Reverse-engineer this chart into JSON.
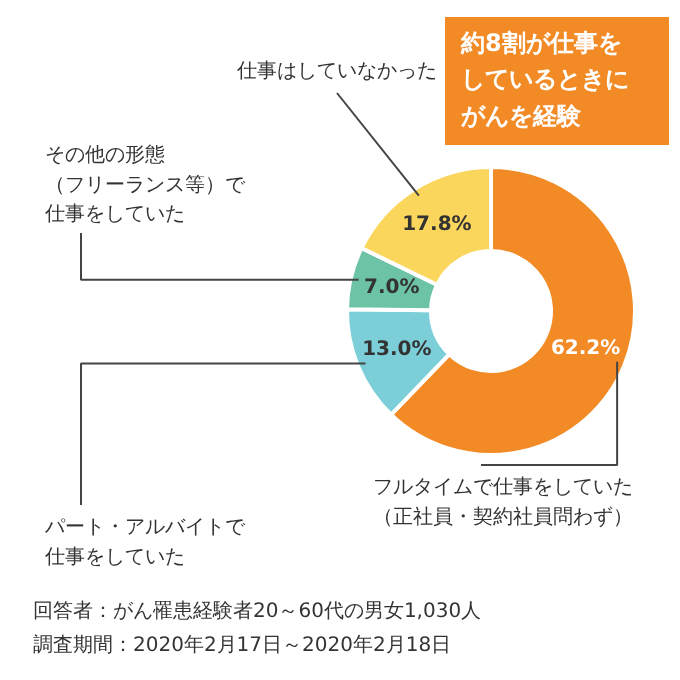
{
  "chart_data": {
    "type": "donut",
    "categories": [
      "フルタイムで仕事をしていた（正社員・契約社員問わず）",
      "パート・アルバイトで仕事をしていた",
      "その他の形態（フリーランス等）で仕事をしていた",
      "仕事はしていなかった"
    ],
    "values": [
      62.2,
      13.0,
      7.0,
      17.8
    ],
    "value_labels": [
      "62.2%",
      "13.0%",
      "7.0%",
      "17.8%"
    ],
    "colors": [
      "#f28a26",
      "#7ccfd8",
      "#6cc3a5",
      "#fbd65c"
    ],
    "annotations": [
      "約8割が仕事をしているときにがんを経験",
      "回答者：がん罹患経験者20～60代の男女1,030人",
      "調査期間：2020年2月17日～2020年2月18日"
    ]
  }
}
